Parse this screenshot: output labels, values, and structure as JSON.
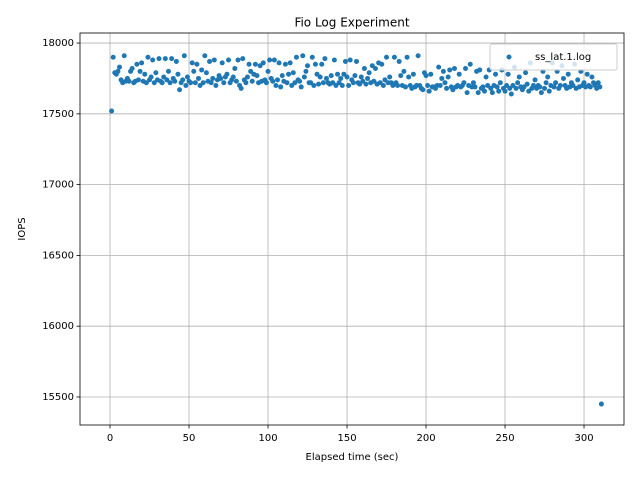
{
  "chart_data": {
    "type": "scatter",
    "title": "Fio Log Experiment",
    "x_label": "Elapsed time (sec)",
    "y_label": "IOPS",
    "xlim": [
      -19,
      325.3
    ],
    "ylim": [
      15302,
      18071
    ],
    "xticks": [
      0,
      50,
      100,
      150,
      200,
      250,
      300
    ],
    "yticks": [
      15500,
      16000,
      16500,
      17000,
      17500,
      18000
    ],
    "grid": true,
    "legend": "upper right",
    "series": [
      {
        "name": "ss_lat.1.log",
        "color": "#1f77b4",
        "x": [
          1,
          2,
          3,
          4,
          5,
          6,
          7,
          8,
          9,
          10,
          11,
          12,
          13,
          14,
          15,
          16,
          17,
          18,
          19,
          20,
          21,
          22,
          23,
          24,
          25,
          26,
          27,
          28,
          29,
          30,
          31,
          32,
          33,
          34,
          35,
          36,
          37,
          38,
          39,
          40,
          41,
          42,
          43,
          44,
          45,
          46,
          47,
          48,
          49,
          50,
          51,
          52,
          53,
          54,
          55,
          56,
          57,
          58,
          59,
          60,
          61,
          62,
          63,
          64,
          65,
          66,
          67,
          68,
          69,
          70,
          71,
          72,
          73,
          74,
          75,
          76,
          77,
          78,
          79,
          80,
          81,
          82,
          83,
          84,
          85,
          86,
          87,
          88,
          89,
          90,
          91,
          92,
          93,
          94,
          95,
          96,
          97,
          98,
          99,
          100,
          101,
          102,
          103,
          104,
          105,
          106,
          107,
          108,
          109,
          110,
          111,
          112,
          113,
          114,
          115,
          116,
          117,
          118,
          119,
          120,
          121,
          122,
          123,
          124,
          125,
          126,
          127,
          128,
          129,
          130,
          131,
          132,
          133,
          134,
          135,
          136,
          137,
          138,
          139,
          140,
          141,
          142,
          143,
          144,
          145,
          146,
          147,
          148,
          149,
          150,
          151,
          152,
          153,
          154,
          155,
          156,
          157,
          158,
          159,
          160,
          161,
          162,
          163,
          164,
          165,
          166,
          167,
          168,
          169,
          170,
          171,
          172,
          173,
          174,
          175,
          176,
          177,
          178,
          179,
          180,
          181,
          182,
          183,
          184,
          185,
          186,
          187,
          188,
          189,
          190,
          191,
          192,
          193,
          194,
          195,
          196,
          197,
          198,
          199,
          200,
          201,
          202,
          203,
          204,
          205,
          206,
          207,
          208,
          209,
          210,
          211,
          212,
          213,
          214,
          215,
          216,
          217,
          218,
          219,
          220,
          221,
          222,
          223,
          224,
          225,
          226,
          227,
          228,
          229,
          230,
          231,
          232,
          233,
          234,
          235,
          236,
          237,
          238,
          239,
          240,
          241,
          242,
          243,
          244,
          245,
          246,
          247,
          248,
          249,
          250,
          251,
          252,
          253,
          254,
          255,
          256,
          257,
          258,
          259,
          260,
          261,
          262,
          263,
          264,
          265,
          266,
          267,
          268,
          269,
          270,
          271,
          272,
          273,
          274,
          275,
          276,
          277,
          278,
          279,
          280,
          281,
          282,
          283,
          284,
          285,
          286,
          287,
          288,
          289,
          290,
          291,
          292,
          293,
          294,
          295,
          296,
          297,
          298,
          299,
          300,
          301,
          302,
          303,
          304,
          305,
          306,
          307,
          308,
          309,
          310,
          311
        ],
        "values": [
          17520,
          17900,
          17790,
          17780,
          17800,
          17830,
          17740,
          17720,
          17910,
          17730,
          17750,
          17730,
          17800,
          17820,
          17720,
          17730,
          17850,
          17740,
          17800,
          17860,
          17730,
          17780,
          17720,
          17900,
          17740,
          17760,
          17880,
          17720,
          17790,
          17740,
          17890,
          17730,
          17720,
          17760,
          17890,
          17740,
          17800,
          17720,
          17890,
          17750,
          17730,
          17870,
          17780,
          17670,
          17720,
          17740,
          17910,
          17700,
          17760,
          17730,
          17720,
          17860,
          17800,
          17720,
          17850,
          17750,
          17700,
          17810,
          17720,
          17910,
          17790,
          17730,
          17870,
          17720,
          17750,
          17880,
          17700,
          17740,
          17770,
          17750,
          17860,
          17720,
          17760,
          17780,
          17880,
          17720,
          17740,
          17760,
          17820,
          17730,
          17880,
          17700,
          17680,
          17890,
          17740,
          17720,
          17760,
          17850,
          17800,
          17730,
          17780,
          17850,
          17770,
          17720,
          17840,
          17730,
          17860,
          17740,
          17720,
          17800,
          17880,
          17750,
          17730,
          17880,
          17700,
          17740,
          17860,
          17690,
          17770,
          17730,
          17850,
          17720,
          17780,
          17860,
          17700,
          17790,
          17720,
          17900,
          17740,
          17730,
          17690,
          17910,
          17760,
          17800,
          17840,
          17720,
          17720,
          17900,
          17700,
          17850,
          17780,
          17710,
          17760,
          17850,
          17720,
          17890,
          17750,
          17720,
          17710,
          17770,
          17720,
          17880,
          17700,
          17780,
          17720,
          17750,
          17700,
          17780,
          17870,
          17760,
          17700,
          17880,
          17740,
          17720,
          17770,
          17870,
          17720,
          17710,
          17760,
          17730,
          17820,
          17710,
          17750,
          17790,
          17720,
          17840,
          17730,
          17820,
          17710,
          17860,
          17720,
          17850,
          17700,
          17740,
          17900,
          17720,
          17760,
          17720,
          17700,
          17900,
          17720,
          17700,
          17870,
          17770,
          17700,
          17800,
          17690,
          17900,
          17760,
          17700,
          17680,
          17780,
          17690,
          17700,
          17910,
          17700,
          17680,
          17670,
          17790,
          17770,
          17700,
          17660,
          17780,
          17690,
          17690,
          17680,
          17700,
          17830,
          17700,
          17750,
          17800,
          17720,
          17680,
          17760,
          17810,
          17690,
          17670,
          17820,
          17690,
          17700,
          17780,
          17690,
          17700,
          17720,
          17820,
          17650,
          17700,
          17850,
          17690,
          17720,
          17690,
          17800,
          17650,
          17810,
          17680,
          17690,
          17660,
          17760,
          17700,
          17810,
          17680,
          17650,
          17700,
          17780,
          17690,
          17660,
          17720,
          17810,
          17680,
          17660,
          17700,
          17780,
          17680,
          17640,
          17700,
          17830,
          17680,
          17720,
          17760,
          17690,
          17670,
          17690,
          17790,
          17710,
          17660,
          17860,
          17680,
          17700,
          17740,
          17680,
          17700,
          17690,
          17650,
          17800,
          17680,
          17720,
          17760,
          17660,
          17700,
          17860,
          17690,
          17720,
          17800,
          17680,
          17700,
          17840,
          17750,
          17700,
          17680,
          17780,
          17690,
          17720,
          17700,
          17850,
          17680,
          17740,
          17690,
          17800,
          17700,
          17720,
          17690,
          17780,
          17700,
          17690,
          17760,
          17720,
          17700,
          17680,
          17720,
          17690,
          15450
        ]
      }
    ]
  }
}
